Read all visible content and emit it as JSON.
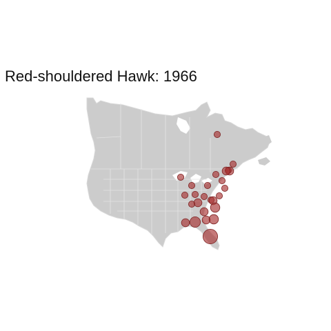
{
  "map": {
    "title": "Red-shouldered Hawk: 1966",
    "species": "Red-shouldered Hawk",
    "year": 1966,
    "colors": {
      "land": "#cccccc",
      "borders": "#e4e4e4",
      "marker_fill": "#a83232",
      "marker_stroke": "#7a1f1f"
    },
    "observations": [
      {
        "region": "Quebec",
        "relative_abundance": 1
      },
      {
        "region": "Maine",
        "relative_abundance": 1
      },
      {
        "region": "Vermont",
        "relative_abundance": 1
      },
      {
        "region": "Massachusetts",
        "relative_abundance": 2
      },
      {
        "region": "Connecticut",
        "relative_abundance": 2
      },
      {
        "region": "New York",
        "relative_abundance": 1
      },
      {
        "region": "Wisconsin",
        "relative_abundance": 1
      },
      {
        "region": "Michigan",
        "relative_abundance": 1
      },
      {
        "region": "Pennsylvania",
        "relative_abundance": 1
      },
      {
        "region": "New Jersey",
        "relative_abundance": 1
      },
      {
        "region": "Ohio",
        "relative_abundance": 1
      },
      {
        "region": "Maryland",
        "relative_abundance": 1
      },
      {
        "region": "Indiana",
        "relative_abundance": 1
      },
      {
        "region": "Missouri",
        "relative_abundance": 1
      },
      {
        "region": "Kentucky",
        "relative_abundance": 1
      },
      {
        "region": "West Virginia",
        "relative_abundance": 1
      },
      {
        "region": "Virginia",
        "relative_abundance": 2
      },
      {
        "region": "Tennessee",
        "relative_abundance": 2
      },
      {
        "region": "Arkansas",
        "relative_abundance": 1
      },
      {
        "region": "North Carolina",
        "relative_abundance": 2
      },
      {
        "region": "South Carolina",
        "relative_abundance": 3
      },
      {
        "region": "Alabama",
        "relative_abundance": 2
      },
      {
        "region": "Georgia",
        "relative_abundance": 3
      },
      {
        "region": "Louisiana",
        "relative_abundance": 2
      },
      {
        "region": "North Florida",
        "relative_abundance": 4
      },
      {
        "region": "South Florida",
        "relative_abundance": 9
      }
    ]
  }
}
